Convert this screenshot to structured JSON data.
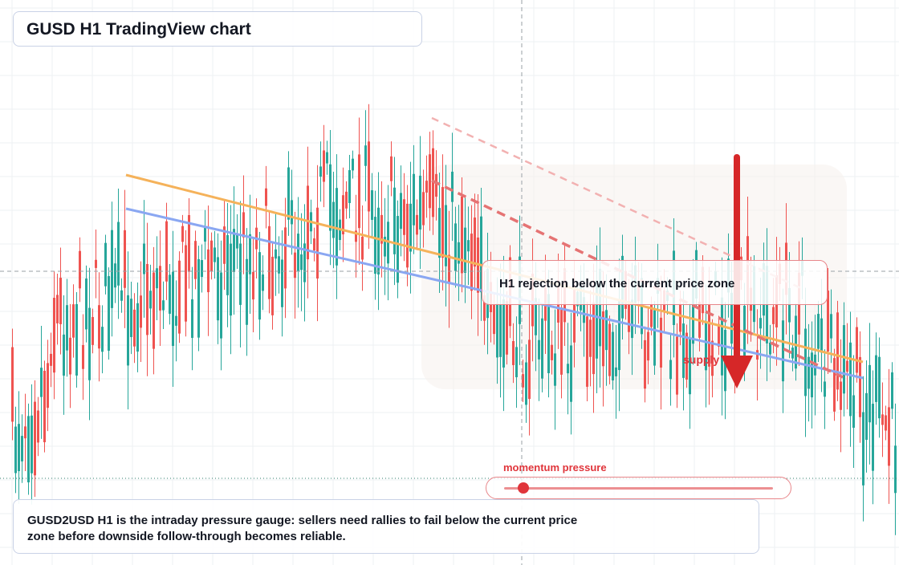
{
  "header": {
    "title": "GUSD H1 TradingView chart"
  },
  "callout": {
    "text": "H1 rejection below the current price zone"
  },
  "zone": {
    "label": "supply"
  },
  "gauge": {
    "label": "momentum pressure",
    "level_percent": 7
  },
  "description": {
    "text": "GUSD2USD H1 is the intraday pressure gauge: sellers need rallies to fail below the current price zone before downside follow-through becomes reliable."
  },
  "colors": {
    "up_candle": "#26a69a",
    "down_candle": "#ef5350",
    "trendline_orange": "#f5b25a",
    "trendline_blue": "#8aa7f2",
    "resistance_dashed": "#e57373",
    "arrow": "#d62728",
    "accent_text": "#e0353b"
  },
  "icons": {
    "arrow": "arrow-down-icon"
  }
}
